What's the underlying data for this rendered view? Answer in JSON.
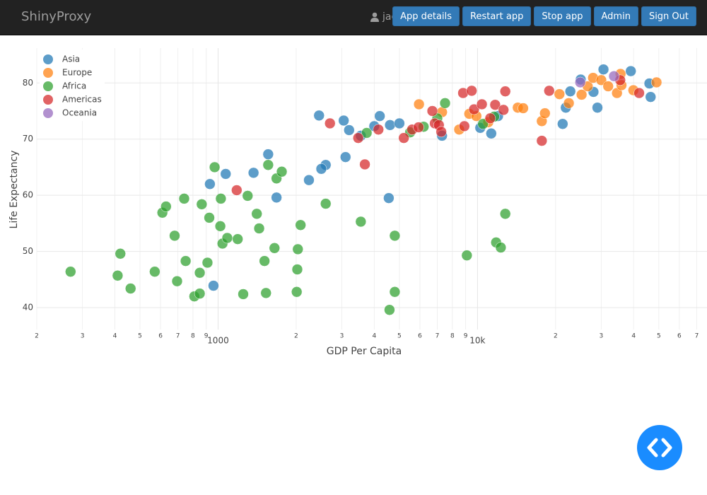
{
  "navbar": {
    "brand": "ShinyProxy",
    "user": "jack",
    "buttons": [
      "App details",
      "Restart app",
      "Stop app",
      "Admin",
      "Sign Out"
    ]
  },
  "chart_data": {
    "type": "scatter",
    "xlabel": "GDP Per Capita",
    "ylabel": "Life Expectancy",
    "xscale": "log",
    "xlim": [
      200,
      76700
    ],
    "ylim": [
      36.1,
      86.2
    ],
    "grid": true,
    "legend": "top-left",
    "xticks": [
      {
        "value": 200,
        "label": "2"
      },
      {
        "value": 300,
        "label": "3"
      },
      {
        "value": 400,
        "label": "4"
      },
      {
        "value": 500,
        "label": "5"
      },
      {
        "value": 600,
        "label": "6"
      },
      {
        "value": 700,
        "label": "7"
      },
      {
        "value": 800,
        "label": "8"
      },
      {
        "value": 900,
        "label": "9"
      },
      1000,
      {
        "value": 2000,
        "label": "2"
      },
      {
        "value": 3000,
        "label": "3"
      },
      {
        "value": 4000,
        "label": "4"
      },
      {
        "value": 5000,
        "label": "5"
      },
      {
        "value": 6000,
        "label": "6"
      },
      {
        "value": 7000,
        "label": "7"
      },
      {
        "value": 8000,
        "label": "8"
      },
      {
        "value": 9000,
        "label": "9"
      },
      {
        "value": 10000,
        "label": "10k"
      },
      {
        "value": 20000,
        "label": "2"
      },
      {
        "value": 30000,
        "label": "3"
      },
      {
        "value": 40000,
        "label": "4"
      },
      {
        "value": 50000,
        "label": "5"
      },
      {
        "value": 60000,
        "label": "6"
      },
      {
        "value": 70000,
        "label": "7"
      }
    ],
    "yticks": [
      40,
      50,
      60,
      70,
      80
    ],
    "series": [
      {
        "name": "Asia",
        "color": "#1f77b4",
        "x": [
          2450,
          3050,
          3200,
          3550,
          4000,
          4200,
          4600,
          5000,
          3100,
          2600,
          2500,
          2240,
          1560,
          1370,
          1070,
          930,
          1680,
          4550,
          960,
          7300,
          10250,
          11300,
          12000,
          21300,
          21900,
          22800,
          25000,
          28000,
          29000,
          30600,
          39000,
          46000,
          46500
        ],
        "values": [
          74.2,
          73.3,
          71.6,
          70.6,
          72.3,
          74.1,
          72.5,
          72.8,
          66.8,
          65.4,
          64.7,
          62.7,
          67.3,
          64.0,
          63.8,
          62.0,
          59.6,
          59.5,
          43.9,
          70.6,
          72.0,
          71.0,
          74.1,
          72.7,
          75.6,
          78.5,
          80.6,
          78.4,
          75.6,
          82.4,
          82.1,
          79.9,
          77.5
        ]
      },
      {
        "name": "Europe",
        "color": "#ff7f0e",
        "x": [
          5950,
          7300,
          8500,
          9300,
          9900,
          11000,
          14300,
          15000,
          17700,
          18200,
          20700,
          22500,
          25200,
          26600,
          27900,
          30000,
          31900,
          34500,
          35600,
          35900,
          39900,
          49000
        ],
        "values": [
          76.2,
          74.8,
          71.7,
          74.5,
          74.1,
          73.0,
          75.6,
          75.5,
          73.2,
          74.6,
          78.0,
          76.4,
          77.9,
          79.4,
          80.9,
          80.5,
          79.4,
          78.2,
          81.6,
          79.6,
          78.7,
          80.1
        ]
      },
      {
        "name": "Africa",
        "color": "#2ca02c",
        "x": [
          270,
          410,
          420,
          460,
          570,
          610,
          630,
          680,
          695,
          740,
          750,
          810,
          850,
          850,
          865,
          910,
          925,
          970,
          1020,
          1025,
          1040,
          1085,
          1190,
          1250,
          1300,
          1410,
          1440,
          1510,
          1530,
          1560,
          1650,
          1680,
          1760,
          2010,
          2020,
          2030,
          2080,
          2600,
          3550,
          3740,
          4580,
          4800,
          4800,
          5500,
          6200,
          7000,
          7500,
          9100,
          10500,
          11600,
          11800,
          12300,
          12800
        ],
        "values": [
          46.4,
          45.7,
          49.6,
          43.4,
          46.4,
          56.9,
          58.0,
          52.8,
          44.7,
          59.4,
          48.3,
          42.0,
          42.5,
          46.2,
          58.4,
          48.0,
          56.0,
          65.0,
          54.5,
          59.4,
          51.4,
          52.4,
          52.2,
          42.4,
          59.9,
          56.7,
          54.1,
          48.3,
          42.6,
          65.4,
          50.6,
          63.0,
          64.2,
          42.8,
          46.8,
          50.4,
          54.7,
          58.5,
          55.3,
          71.1,
          39.6,
          52.8,
          42.8,
          71.2,
          72.2,
          73.7,
          76.4,
          49.3,
          72.7,
          74.0,
          51.6,
          50.7,
          56.7
        ]
      },
      {
        "name": "Americas",
        "color": "#d62728",
        "x": [
          1180,
          2700,
          3470,
          3680,
          4150,
          5200,
          5600,
          5930,
          6700,
          6850,
          7100,
          7250,
          8800,
          8900,
          9500,
          9700,
          10400,
          11200,
          11700,
          12600,
          12800,
          17700,
          18900,
          35500,
          42000
        ],
        "values": [
          60.9,
          72.8,
          70.2,
          65.5,
          71.7,
          70.2,
          71.7,
          72.1,
          75.0,
          72.8,
          72.5,
          71.3,
          78.2,
          72.3,
          78.6,
          75.3,
          76.2,
          73.7,
          76.1,
          75.2,
          78.5,
          69.7,
          78.6,
          80.5,
          78.2
        ]
      },
      {
        "name": "Oceania",
        "color": "#9467bd",
        "x": [
          24900,
          33600
        ],
        "values": [
          80.1,
          81.2
        ]
      }
    ]
  }
}
